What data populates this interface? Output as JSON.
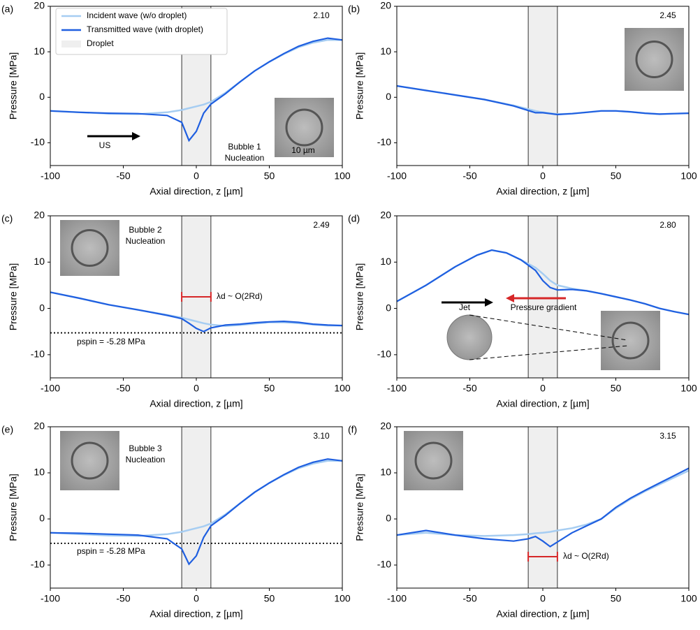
{
  "chart_data": [
    {
      "type": "line",
      "panel_label": "(a)",
      "time_label": "2.10",
      "x": [
        -100,
        -80,
        -60,
        -40,
        -20,
        -10,
        -5,
        0,
        5,
        10,
        20,
        30,
        40,
        50,
        60,
        70,
        80,
        90,
        100
      ],
      "series": [
        {
          "name": "Incident wave (w/o droplet)",
          "color": "#a6cdf2",
          "values": [
            -3,
            -3.3,
            -3.6,
            -3.7,
            -3.3,
            -2.8,
            -2.4,
            -2,
            -1.6,
            -1,
            1,
            3.4,
            5.8,
            7.8,
            9.5,
            11,
            12,
            12.6,
            12.6
          ]
        },
        {
          "name": "Transmitted wave (with droplet)",
          "color": "#1f5fe0",
          "values": [
            -3,
            -3.3,
            -3.5,
            -3.6,
            -4,
            -5.5,
            -9.5,
            -7.5,
            -3.5,
            -1.5,
            0.8,
            3.4,
            5.8,
            7.8,
            9.6,
            11.2,
            12.3,
            13,
            12.6
          ]
        }
      ],
      "droplet": [
        -10,
        10
      ],
      "droplet_label": "Droplet",
      "annotations": [
        {
          "text": "US"
        },
        {
          "text": "Bubble 1"
        },
        {
          "text": "Nucleation"
        },
        {
          "text": "10 µm"
        }
      ],
      "xlabel": "Axial direction, z [µm]",
      "ylabel": "Pressure [MPa]",
      "xlim": [
        -100,
        100
      ],
      "xticks": [
        -100,
        -50,
        0,
        50,
        100
      ],
      "ylim": [
        -15,
        20
      ],
      "yticks": [
        -10,
        0,
        10,
        20
      ]
    },
    {
      "type": "line",
      "panel_label": "(b)",
      "time_label": "2.45",
      "x": [
        -100,
        -80,
        -60,
        -40,
        -20,
        -10,
        -5,
        0,
        5,
        10,
        20,
        30,
        40,
        50,
        60,
        70,
        80,
        90,
        100
      ],
      "series": [
        {
          "color": "#a6cdf2",
          "values": [
            2.5,
            1.5,
            0.5,
            -0.5,
            -1.8,
            -2.6,
            -3,
            -3.3,
            -3.5,
            -3.7,
            -3.6,
            -3.3,
            -3,
            -3,
            -3.2,
            -3.5,
            -3.7,
            -3.6,
            -3.5
          ]
        },
        {
          "color": "#1f5fe0",
          "values": [
            2.5,
            1.5,
            0.5,
            -0.5,
            -1.9,
            -2.9,
            -3.4,
            -3.4,
            -3.6,
            -3.8,
            -3.6,
            -3.3,
            -3,
            -3,
            -3.2,
            -3.5,
            -3.7,
            -3.6,
            -3.5
          ]
        }
      ],
      "droplet": [
        -10,
        10
      ],
      "xlabel": "Axial direction, z [µm]",
      "ylabel": "Pressure [MPa]",
      "xlim": [
        -100,
        100
      ],
      "xticks": [
        -100,
        -50,
        0,
        50,
        100
      ],
      "ylim": [
        -15,
        20
      ],
      "yticks": [
        -10,
        0,
        10,
        20
      ]
    },
    {
      "type": "line",
      "panel_label": "(c)",
      "time_label": "2.49",
      "x": [
        -100,
        -80,
        -60,
        -40,
        -20,
        -10,
        -5,
        0,
        5,
        10,
        20,
        30,
        40,
        50,
        60,
        70,
        80,
        90,
        100
      ],
      "series": [
        {
          "color": "#a6cdf2",
          "values": [
            3.5,
            2.2,
            0.8,
            -0.3,
            -1.4,
            -2,
            -2.4,
            -2.8,
            -3.2,
            -3.5,
            -3.8,
            -3.6,
            -3.3,
            -3,
            -3,
            -3.2,
            -3.5,
            -3.7,
            -3.7
          ]
        },
        {
          "color": "#1f5fe0",
          "values": [
            3.5,
            2.2,
            0.8,
            -0.3,
            -1.5,
            -2.2,
            -3.2,
            -4.3,
            -5,
            -4.2,
            -3.6,
            -3.4,
            -3.1,
            -2.9,
            -2.8,
            -3,
            -3.4,
            -3.6,
            -3.7
          ]
        }
      ],
      "droplet": [
        -10,
        10
      ],
      "hline": {
        "value": -5.28,
        "label": "pspin = -5.28 MPa"
      },
      "annotations": [
        {
          "text": "Bubble 2"
        },
        {
          "text": "Nucleation"
        },
        {
          "text": "λd ~ O(2Rd)",
          "color": "#d62728"
        }
      ],
      "xlabel": "Axial direction, z [µm]",
      "ylabel": "Pressure [MPa]",
      "xlim": [
        -100,
        100
      ],
      "xticks": [
        -100,
        -50,
        0,
        50,
        100
      ],
      "ylim": [
        -15,
        20
      ],
      "yticks": [
        -10,
        0,
        10,
        20
      ]
    },
    {
      "type": "line",
      "panel_label": "(d)",
      "time_label": "2.80",
      "x": [
        -100,
        -80,
        -60,
        -45,
        -35,
        -25,
        -15,
        -5,
        0,
        5,
        10,
        20,
        30,
        40,
        50,
        60,
        70,
        80,
        90,
        100
      ],
      "series": [
        {
          "color": "#a6cdf2",
          "values": [
            1.5,
            5,
            9,
            11.5,
            12.6,
            12,
            10.5,
            8.8,
            7.5,
            6,
            5,
            4.3,
            3.8,
            3.2,
            2.5,
            1.8,
            1,
            0,
            -0.7,
            -1.3
          ]
        },
        {
          "color": "#1f5fe0",
          "values": [
            1.5,
            5,
            9,
            11.5,
            12.6,
            12,
            10.5,
            8.2,
            6,
            4.5,
            4,
            4.1,
            3.8,
            3.2,
            2.5,
            1.8,
            1,
            0,
            -0.7,
            -1.3
          ]
        }
      ],
      "droplet": [
        -10,
        10
      ],
      "annotations": [
        {
          "text": "Jet"
        },
        {
          "text": "Pressure gradient",
          "color": "#d62728"
        }
      ],
      "xlabel": "Axial direction, z [µm]",
      "ylabel": "Pressure [MPa]",
      "xlim": [
        -100,
        100
      ],
      "xticks": [
        -100,
        -50,
        0,
        50,
        100
      ],
      "ylim": [
        -15,
        20
      ],
      "yticks": [
        -10,
        0,
        10,
        20
      ]
    },
    {
      "type": "line",
      "panel_label": "(e)",
      "time_label": "3.10",
      "x": [
        -100,
        -80,
        -60,
        -40,
        -20,
        -10,
        -5,
        0,
        5,
        10,
        20,
        30,
        40,
        50,
        60,
        70,
        80,
        90,
        100
      ],
      "series": [
        {
          "color": "#a6cdf2",
          "values": [
            -3,
            -3.3,
            -3.6,
            -3.7,
            -3.3,
            -2.8,
            -2.4,
            -2,
            -1.6,
            -1,
            1,
            3.4,
            5.8,
            7.8,
            9.5,
            11,
            12,
            12.6,
            12.6
          ]
        },
        {
          "color": "#1f5fe0",
          "values": [
            -3,
            -3.1,
            -3.3,
            -3.5,
            -4.3,
            -6.5,
            -9.8,
            -8,
            -4,
            -1.5,
            0.8,
            3.4,
            5.8,
            7.8,
            9.6,
            11.2,
            12.3,
            13,
            12.6
          ]
        }
      ],
      "droplet": [
        -10,
        10
      ],
      "hline": {
        "value": -5.28,
        "label": "pspin = -5.28 MPa"
      },
      "annotations": [
        {
          "text": "Bubble 3"
        },
        {
          "text": "Nucleation"
        }
      ],
      "xlabel": "Axial direction, z [µm]",
      "ylabel": "Pressure [MPa]",
      "xlim": [
        -100,
        100
      ],
      "xticks": [
        -100,
        -50,
        0,
        50,
        100
      ],
      "ylim": [
        -15,
        20
      ],
      "yticks": [
        -10,
        0,
        10,
        20
      ]
    },
    {
      "type": "line",
      "panel_label": "(f)",
      "time_label": "3.15",
      "x": [
        -100,
        -80,
        -60,
        -40,
        -20,
        -10,
        -5,
        0,
        5,
        10,
        20,
        30,
        40,
        50,
        60,
        70,
        80,
        90,
        100
      ],
      "series": [
        {
          "color": "#a6cdf2",
          "values": [
            -3.5,
            -3,
            -3.5,
            -3.7,
            -3.5,
            -3.3,
            -3.1,
            -3,
            -2.8,
            -2.5,
            -2,
            -1.2,
            0,
            2.3,
            4.3,
            6,
            7.5,
            9,
            10.5
          ]
        },
        {
          "color": "#1f5fe0",
          "values": [
            -3.5,
            -2.5,
            -3.5,
            -4.3,
            -4.8,
            -4.3,
            -3.8,
            -4.8,
            -6,
            -5,
            -3,
            -1.5,
            0,
            2.5,
            4.5,
            6.2,
            7.8,
            9.4,
            11
          ]
        }
      ],
      "droplet": [
        -10,
        10
      ],
      "annotations": [
        {
          "text": "λd ~ O(2Rd)",
          "color": "#d62728"
        }
      ],
      "xlabel": "Axial direction, z [µm]",
      "ylabel": "Pressure [MPa]",
      "xlim": [
        -100,
        100
      ],
      "xticks": [
        -100,
        -50,
        0,
        50,
        100
      ],
      "ylim": [
        -15,
        20
      ],
      "yticks": [
        -10,
        0,
        10,
        20
      ]
    }
  ]
}
